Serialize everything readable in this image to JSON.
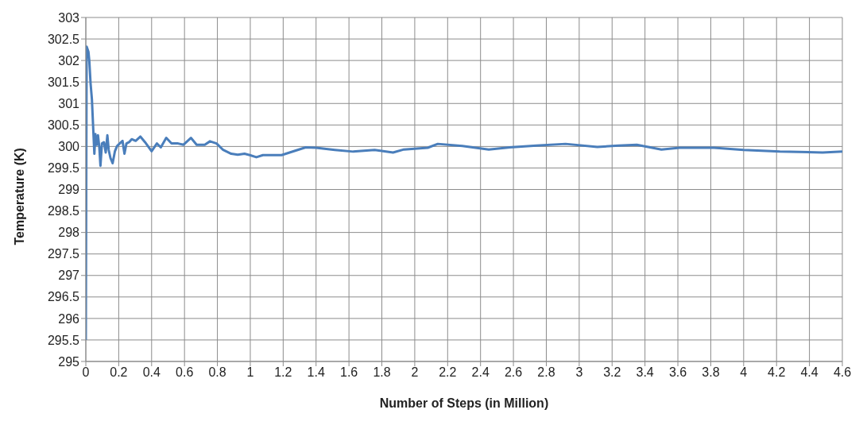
{
  "chart_data": {
    "type": "line",
    "xlabel": "Number of Steps (in Million)",
    "ylabel": "Temperature (K)",
    "x": [
      0,
      0.005,
      0.016,
      0.021,
      0.029,
      0.037,
      0.045,
      0.052,
      0.058,
      0.066,
      0.074,
      0.082,
      0.089,
      0.098,
      0.11,
      0.121,
      0.131,
      0.139,
      0.15,
      0.163,
      0.177,
      0.19,
      0.206,
      0.223,
      0.235,
      0.247,
      0.263,
      0.279,
      0.303,
      0.332,
      0.36,
      0.4,
      0.432,
      0.456,
      0.489,
      0.521,
      0.561,
      0.594,
      0.639,
      0.674,
      0.723,
      0.755,
      0.795,
      0.835,
      0.884,
      0.924,
      0.965,
      0.997,
      1.037,
      1.077,
      1.19,
      1.337,
      1.4,
      1.514,
      1.626,
      1.756,
      1.868,
      1.934,
      2.079,
      2.14,
      2.29,
      2.45,
      2.578,
      2.74,
      2.917,
      3.11,
      3.24,
      3.35,
      3.5,
      3.61,
      3.82,
      4.0,
      4.22,
      4.48,
      4.6
    ],
    "series": [
      {
        "color": "#4a7ebb",
        "values": [
          295.5,
          302.32,
          302.2,
          302.0,
          301.46,
          301.1,
          300.41,
          299.83,
          300.29,
          300.04,
          300.26,
          299.98,
          299.55,
          300.07,
          300.1,
          299.86,
          300.26,
          299.92,
          299.73,
          299.61,
          299.89,
          300.01,
          300.07,
          300.13,
          299.83,
          300.07,
          300.1,
          300.17,
          300.13,
          300.23,
          300.1,
          299.89,
          300.07,
          299.98,
          300.2,
          300.07,
          300.07,
          300.04,
          300.2,
          300.04,
          300.04,
          300.12,
          300.07,
          299.92,
          299.83,
          299.81,
          299.83,
          299.8,
          299.75,
          299.8,
          299.8,
          299.98,
          299.97,
          299.92,
          299.88,
          299.92,
          299.86,
          299.93,
          299.97,
          300.06,
          300.01,
          299.93,
          299.98,
          300.02,
          300.06,
          299.99,
          300.02,
          300.04,
          299.93,
          299.97,
          299.97,
          299.92,
          299.88,
          299.86,
          299.88
        ]
      }
    ],
    "xlim": [
      0,
      4.6
    ],
    "xticks": [
      0,
      0.2,
      0.4,
      0.6,
      0.8,
      1,
      1.2,
      1.4,
      1.6,
      1.8,
      2,
      2.2,
      2.4,
      2.6,
      2.8,
      3,
      3.2,
      3.4,
      3.6,
      3.8,
      4,
      4.2,
      4.4,
      4.6
    ],
    "ylim": [
      295,
      303
    ],
    "yticks": [
      295,
      295.5,
      296,
      296.5,
      297,
      297.5,
      298,
      298.5,
      299,
      299.5,
      300,
      300.5,
      301,
      301.5,
      302,
      302.5,
      303
    ],
    "grid": true,
    "legend": false,
    "marker": "none",
    "line_style": "solid"
  }
}
